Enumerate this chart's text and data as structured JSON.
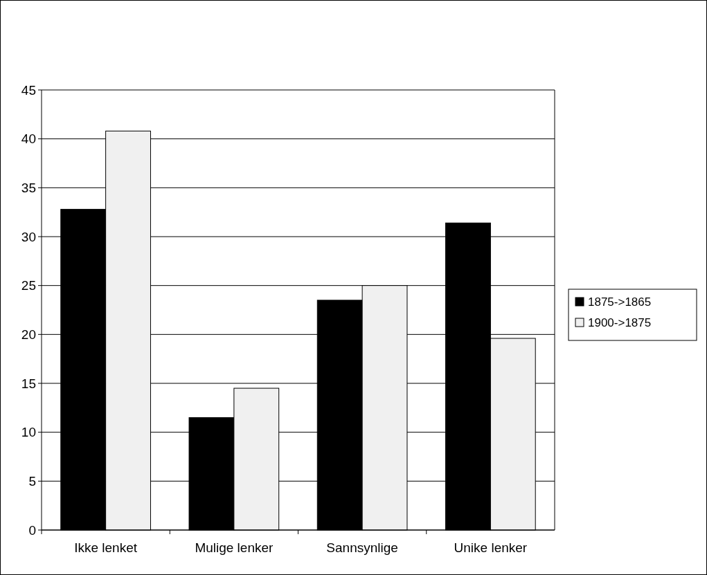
{
  "chart_data": {
    "type": "bar",
    "categories": [
      "Ikke lenket",
      "Mulige lenker",
      "Sannsynlige",
      "Unike lenker"
    ],
    "series": [
      {
        "name": "1875->1865",
        "color": "#000000",
        "values": [
          32.8,
          11.5,
          23.5,
          31.4
        ]
      },
      {
        "name": "1900->1875",
        "color": "#f0f0f0",
        "values": [
          40.8,
          14.5,
          25,
          19.6
        ]
      }
    ],
    "ylim": [
      0,
      45
    ],
    "yticks": [
      0,
      5,
      10,
      15,
      20,
      25,
      30,
      35,
      40,
      45
    ],
    "grid": "y",
    "legend": "right"
  }
}
